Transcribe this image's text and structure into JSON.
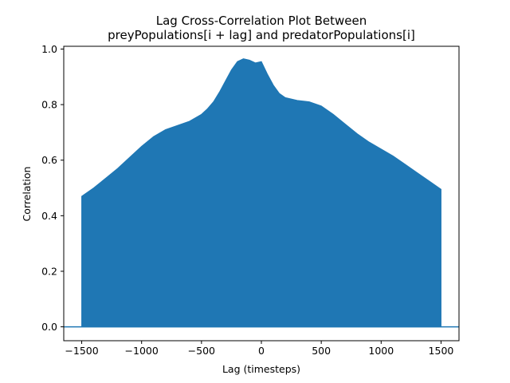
{
  "chart_data": {
    "type": "area",
    "title": [
      "Lag Cross-Correlation Plot Between",
      "preyPopulations[i + lag] and predatorPopulations[i]"
    ],
    "xlabel": "Lag (timesteps)",
    "ylabel": "Correlation",
    "xlim": [
      -1650,
      1650
    ],
    "ylim": [
      -0.05,
      1.01
    ],
    "xticks": [
      {
        "value": -1500,
        "label": "−1500"
      },
      {
        "value": -1000,
        "label": "−1000"
      },
      {
        "value": -500,
        "label": "−500"
      },
      {
        "value": 0,
        "label": "0"
      },
      {
        "value": 500,
        "label": "500"
      },
      {
        "value": 1000,
        "label": "1000"
      },
      {
        "value": 1500,
        "label": "1500"
      }
    ],
    "yticks": [
      {
        "value": 0.0,
        "label": "0.0"
      },
      {
        "value": 0.2,
        "label": "0.2"
      },
      {
        "value": 0.4,
        "label": "0.4"
      },
      {
        "value": 0.6,
        "label": "0.6"
      },
      {
        "value": 0.8,
        "label": "0.8"
      },
      {
        "value": 1.0,
        "label": "1.0"
      }
    ],
    "baseline": 0.0,
    "grid": false,
    "legend": false,
    "color": "#1f77b4",
    "series": [
      {
        "x": [
          -1500,
          -1400,
          -1300,
          -1200,
          -1100,
          -1000,
          -900,
          -800,
          -700,
          -600,
          -500,
          -450,
          -400,
          -350,
          -300,
          -250,
          -200,
          -150,
          -100,
          -50,
          0,
          50,
          100,
          150,
          200,
          250,
          300,
          400,
          500,
          600,
          700,
          800,
          900,
          1000,
          1100,
          1200,
          1300,
          1400,
          1500
        ],
        "y": [
          0.47,
          0.5,
          0.535,
          0.57,
          0.61,
          0.65,
          0.685,
          0.71,
          0.725,
          0.74,
          0.765,
          0.785,
          0.81,
          0.845,
          0.885,
          0.925,
          0.955,
          0.965,
          0.96,
          0.95,
          0.955,
          0.91,
          0.87,
          0.84,
          0.825,
          0.82,
          0.815,
          0.81,
          0.795,
          0.765,
          0.73,
          0.695,
          0.665,
          0.64,
          0.615,
          0.585,
          0.555,
          0.525,
          0.495
        ]
      }
    ]
  }
}
